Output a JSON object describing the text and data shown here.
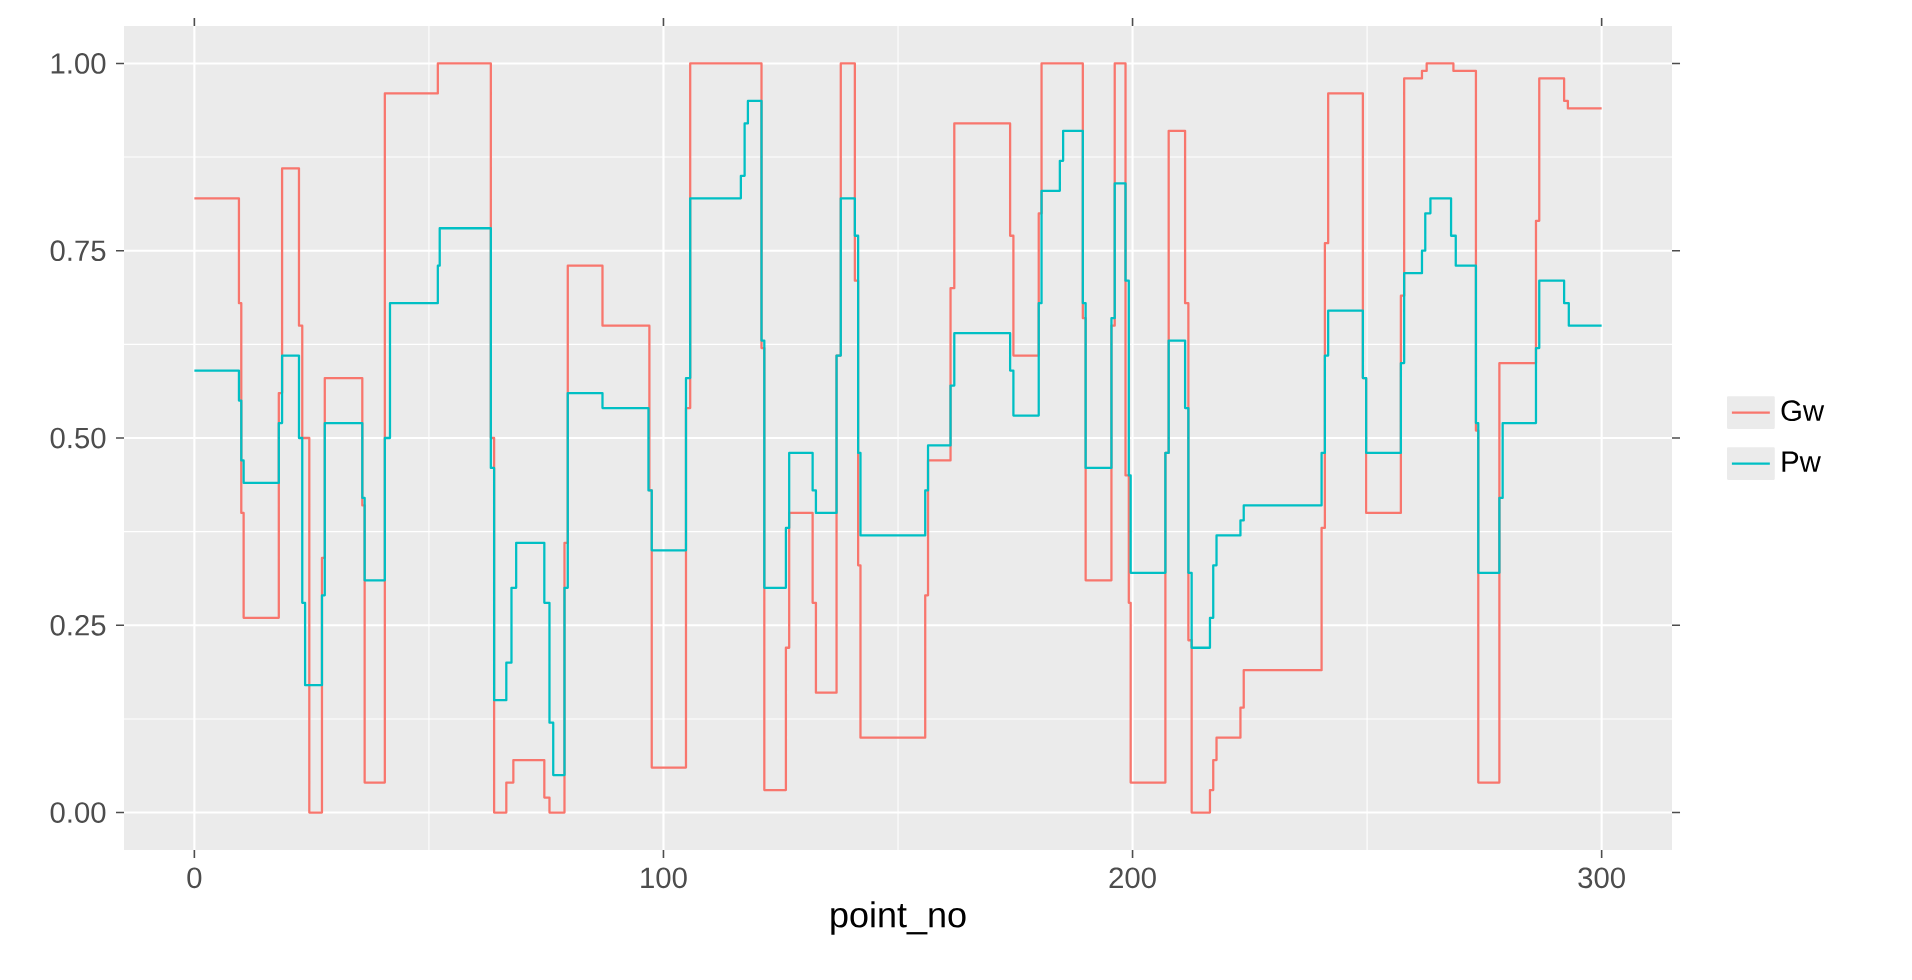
{
  "chart_data": {
    "type": "step",
    "xlabel": "point_no",
    "xlim": [
      -15,
      315
    ],
    "xticks": [
      0,
      100,
      200,
      300
    ],
    "ylim": [
      -0.05,
      1.05
    ],
    "yticks": [
      {
        "value": 0,
        "label": "0.00"
      },
      {
        "value": 0.25,
        "label": "0.25"
      },
      {
        "value": 0.5,
        "label": "0.50"
      },
      {
        "value": 0.75,
        "label": "0.75"
      },
      {
        "value": 1,
        "label": "1.00"
      }
    ],
    "grid": true,
    "legend": "right",
    "line_style": "solid",
    "series": [
      {
        "name": "Gw",
        "color": "#f8766d",
        "x": [
          0,
          9.5,
          10,
          10.5,
          18,
          18.7,
          22.3,
          23,
          24.5,
          27.2,
          27.8,
          35.8,
          36.3,
          40.6,
          51.9,
          63.2,
          63.9,
          66.5,
          68,
          74.6,
          75.7,
          78.9,
          79.6,
          87,
          97,
          97.5,
          104.8,
          105.7,
          120.9,
          121.5,
          126.1,
          126.8,
          131.8,
          132.5,
          136.9,
          137.8,
          140.8,
          141.5,
          142,
          155.8,
          156.4,
          161.2,
          162,
          173.9,
          174.6,
          180,
          180.6,
          189.4,
          190,
          195.5,
          196.2,
          198.5,
          199.2,
          199.6,
          207,
          207.7,
          211.2,
          211.9,
          212.6,
          216.5,
          217.2,
          217.9,
          223,
          223.7,
          240.3,
          241,
          241.7,
          249.1,
          249.8,
          257.2,
          257.9,
          261.7,
          262.7,
          268.4,
          273.2,
          273.7,
          278.2,
          286,
          286.7,
          292,
          292.8,
          300
        ],
        "values": [
          0.82,
          0.68,
          0.4,
          0.26,
          0.56,
          0.86,
          0.65,
          0.5,
          0.0,
          0.34,
          0.58,
          0.41,
          0.04,
          0.96,
          1.0,
          0.5,
          0.0,
          0.04,
          0.07,
          0.02,
          0.0,
          0.36,
          0.73,
          0.65,
          0.43,
          0.06,
          0.54,
          1.0,
          0.62,
          0.03,
          0.22,
          0.4,
          0.28,
          0.16,
          0.61,
          1.0,
          0.71,
          0.33,
          0.1,
          0.29,
          0.47,
          0.7,
          0.92,
          0.77,
          0.61,
          0.8,
          1.0,
          0.66,
          0.31,
          0.65,
          1.0,
          0.45,
          0.28,
          0.04,
          0.48,
          0.91,
          0.68,
          0.23,
          0.0,
          0.03,
          0.07,
          0.1,
          0.14,
          0.19,
          0.38,
          0.76,
          0.96,
          0.58,
          0.4,
          0.69,
          0.98,
          0.99,
          1.0,
          0.99,
          0.51,
          0.04,
          0.6,
          0.79,
          0.98,
          0.95,
          0.94,
          0.94
        ]
      },
      {
        "name": "Pw",
        "color": "#00bfc4",
        "x": [
          0,
          9.5,
          10,
          10.5,
          18,
          18.7,
          22.3,
          23,
          23.6,
          27.2,
          27.8,
          35.8,
          36.3,
          40.6,
          41.7,
          51.9,
          52.3,
          63.2,
          63.9,
          66.5,
          67.6,
          68.6,
          74.6,
          75.7,
          76.5,
          78.9,
          79.6,
          87,
          96.8,
          97.5,
          104.8,
          105.7,
          116.5,
          117.3,
          118,
          120.9,
          121.5,
          126.1,
          126.8,
          131.8,
          132.5,
          136.9,
          137.8,
          140.8,
          141.5,
          142,
          155.8,
          156.4,
          161.2,
          162,
          173.9,
          174.6,
          180,
          180.6,
          184.5,
          185.2,
          189.4,
          190,
          195.5,
          196.2,
          198.5,
          199.2,
          199.6,
          207,
          207.7,
          211.2,
          211.9,
          212.6,
          216.5,
          217.2,
          217.9,
          223,
          223.7,
          240.3,
          241,
          241.7,
          249.1,
          249.8,
          257.2,
          257.9,
          261.7,
          262.4,
          263.5,
          267.9,
          268.9,
          273.2,
          273.7,
          278.2,
          278.9,
          286,
          286.7,
          292,
          293,
          300
        ],
        "values": [
          0.59,
          0.55,
          0.47,
          0.44,
          0.52,
          0.61,
          0.5,
          0.28,
          0.17,
          0.29,
          0.52,
          0.42,
          0.31,
          0.5,
          0.68,
          0.73,
          0.78,
          0.46,
          0.15,
          0.2,
          0.3,
          0.36,
          0.28,
          0.12,
          0.05,
          0.3,
          0.56,
          0.54,
          0.43,
          0.35,
          0.58,
          0.82,
          0.85,
          0.92,
          0.95,
          0.63,
          0.3,
          0.38,
          0.48,
          0.43,
          0.4,
          0.61,
          0.82,
          0.77,
          0.48,
          0.37,
          0.43,
          0.49,
          0.57,
          0.64,
          0.59,
          0.53,
          0.68,
          0.83,
          0.87,
          0.91,
          0.68,
          0.46,
          0.66,
          0.84,
          0.71,
          0.45,
          0.32,
          0.48,
          0.63,
          0.54,
          0.32,
          0.22,
          0.26,
          0.33,
          0.37,
          0.39,
          0.41,
          0.48,
          0.61,
          0.67,
          0.58,
          0.48,
          0.6,
          0.72,
          0.75,
          0.8,
          0.82,
          0.77,
          0.73,
          0.52,
          0.32,
          0.42,
          0.52,
          0.62,
          0.71,
          0.68,
          0.65,
          0.65
        ]
      }
    ]
  }
}
